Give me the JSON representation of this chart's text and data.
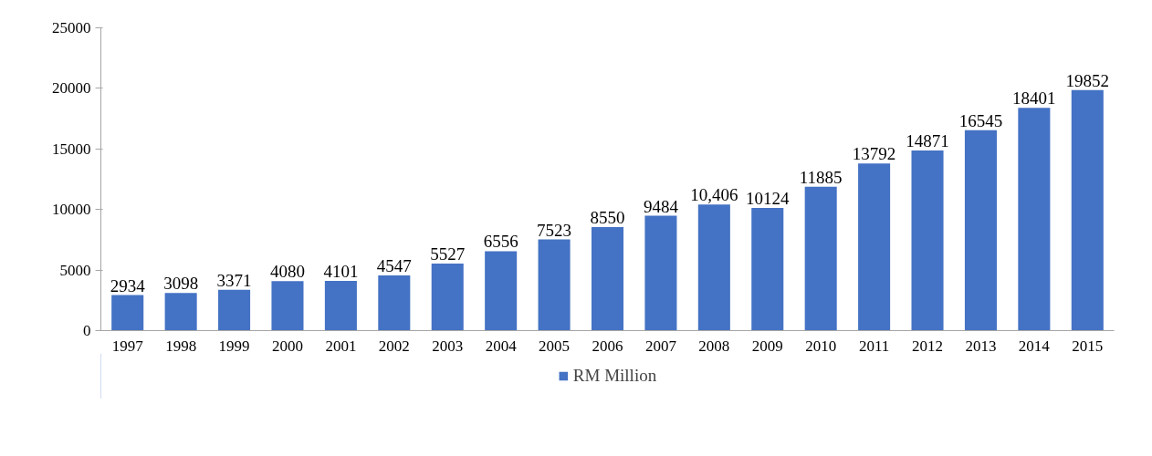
{
  "chart_data": {
    "type": "bar",
    "categories": [
      "1997",
      "1998",
      "1999",
      "2000",
      "2001",
      "2002",
      "2003",
      "2004",
      "2005",
      "2006",
      "2007",
      "2008",
      "2009",
      "2010",
      "2011",
      "2012",
      "2013",
      "2014",
      "2015"
    ],
    "series": [
      {
        "name": "RM Million",
        "color": "#4472c4",
        "values": [
          2934,
          3098,
          3371,
          4080,
          4101,
          4547,
          5527,
          6556,
          7523,
          8550,
          9484,
          10406,
          10124,
          11885,
          13792,
          14871,
          16545,
          18401,
          19852
        ],
        "value_labels": [
          "2934",
          "3098",
          "3371",
          "4080",
          "4101",
          "4547",
          "5527",
          "6556",
          "7523",
          "8550",
          "9484",
          "10,406",
          "10124",
          "11885",
          "13792",
          "14871",
          "16545",
          "18401",
          "19852"
        ]
      }
    ],
    "ylim": [
      0,
      25000
    ],
    "yticks": [
      0,
      5000,
      10000,
      15000,
      20000,
      25000
    ],
    "legend": "bottom"
  }
}
